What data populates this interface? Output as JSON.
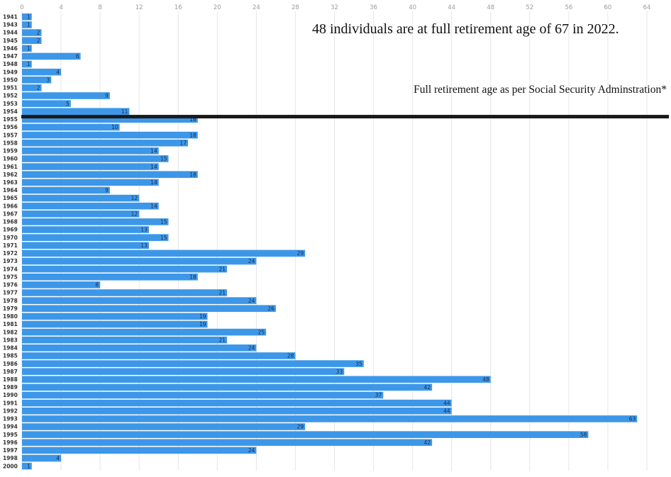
{
  "chart_data": {
    "type": "bar",
    "orientation": "horizontal",
    "title": "",
    "xlabel": "",
    "ylabel": "",
    "xlim": [
      0,
      64
    ],
    "xticks": [
      0,
      4,
      8,
      12,
      16,
      20,
      24,
      28,
      32,
      36,
      40,
      44,
      48,
      52,
      56,
      60,
      64
    ],
    "grid": true,
    "bar_color": "#3d97e8",
    "categories": [
      "1941",
      "1943",
      "1944",
      "1945",
      "1946",
      "1947",
      "1948",
      "1949",
      "1950",
      "1951",
      "1952",
      "1953",
      "1954",
      "1955",
      "1956",
      "1957",
      "1958",
      "1959",
      "1960",
      "1961",
      "1962",
      "1963",
      "1964",
      "1965",
      "1966",
      "1967",
      "1968",
      "1969",
      "1970",
      "1971",
      "1972",
      "1973",
      "1974",
      "1975",
      "1976",
      "1977",
      "1978",
      "1979",
      "1980",
      "1981",
      "1982",
      "1983",
      "1984",
      "1985",
      "1986",
      "1987",
      "1988",
      "1989",
      "1990",
      "1991",
      "1992",
      "1993",
      "1994",
      "1995",
      "1996",
      "1997",
      "1998",
      "2000"
    ],
    "values": [
      1,
      1,
      2,
      2,
      1,
      6,
      1,
      4,
      3,
      2,
      9,
      5,
      11,
      18,
      10,
      18,
      17,
      14,
      15,
      14,
      18,
      14,
      9,
      12,
      14,
      12,
      15,
      13,
      15,
      13,
      29,
      24,
      21,
      18,
      8,
      21,
      24,
      26,
      19,
      19,
      25,
      21,
      24,
      28,
      35,
      33,
      48,
      42,
      37,
      44,
      44,
      63,
      29,
      58,
      42,
      24,
      4,
      1
    ],
    "reference_line": {
      "after_category": "1954",
      "color": "#1a1a1a"
    }
  },
  "annotations": {
    "main": "48 individuals are at full retirement age of 67 in 2022.",
    "sub": "Full retirement age as per Social Security Adminstration*"
  }
}
